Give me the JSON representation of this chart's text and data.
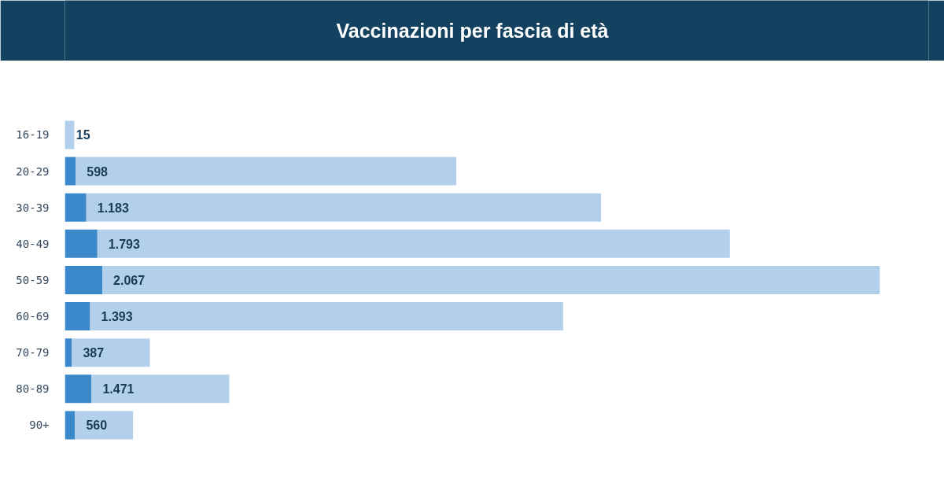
{
  "chart_data": {
    "type": "bar",
    "orientation": "horizontal",
    "stacked": true,
    "tick_labels": "y",
    "title": "Vaccinazioni per fascia di età",
    "categories": [
      "16-19",
      "20-29",
      "30-39",
      "40-49",
      "50-59",
      "60-69",
      "70-79",
      "80-89",
      "90+"
    ],
    "series": [
      {
        "color": "#3b89cb",
        "values": [
          15,
          598,
          1183,
          1793,
          2067,
          1393,
          387,
          1471,
          560
        ],
        "value_labels": [
          "15",
          "598",
          "1.183",
          "1.793",
          "2.067",
          "1.393",
          "387",
          "1.471",
          "560"
        ]
      },
      {
        "color": "#b2d0eb",
        "values": [
          500,
          21000,
          28400,
          34900,
          42900,
          26100,
          4300,
          7600,
          3200
        ]
      }
    ]
  }
}
